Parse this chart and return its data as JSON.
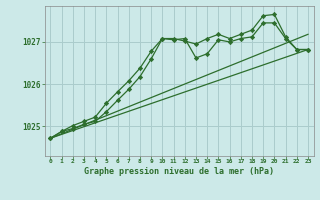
{
  "title": "Graphe pression niveau de la mer (hPa)",
  "background_color": "#cce9e8",
  "grid_color": "#aacccc",
  "line_color": "#2d6e2d",
  "xlim": [
    -0.5,
    23.5
  ],
  "ylim": [
    1024.3,
    1027.85
  ],
  "yticks": [
    1025,
    1026,
    1027
  ],
  "xticks": [
    0,
    1,
    2,
    3,
    4,
    5,
    6,
    7,
    8,
    9,
    10,
    11,
    12,
    13,
    14,
    15,
    16,
    17,
    18,
    19,
    20,
    21,
    22,
    23
  ],
  "series_straight1": {
    "x": [
      0,
      23
    ],
    "y": [
      1024.72,
      1026.82
    ]
  },
  "series_straight2": {
    "x": [
      0,
      23
    ],
    "y": [
      1024.72,
      1027.18
    ]
  },
  "series_markers1": {
    "x": [
      0,
      1,
      2,
      3,
      4,
      5,
      6,
      7,
      8,
      9,
      10,
      11,
      12,
      13,
      14,
      15,
      16,
      17,
      18,
      19,
      20,
      21,
      22,
      23
    ],
    "y": [
      1024.72,
      1024.88,
      1024.95,
      1025.05,
      1025.12,
      1025.35,
      1025.62,
      1025.88,
      1026.18,
      1026.6,
      1027.08,
      1027.05,
      1027.08,
      1026.62,
      1026.72,
      1027.05,
      1027.0,
      1027.08,
      1027.12,
      1027.45,
      1027.45,
      1027.08,
      1026.82,
      1026.82
    ]
  },
  "series_markers2": {
    "x": [
      0,
      1,
      2,
      3,
      4,
      5,
      6,
      7,
      8,
      9,
      10,
      11,
      12,
      13,
      14,
      15,
      16,
      17,
      18,
      19,
      20,
      21,
      22,
      23
    ],
    "y": [
      1024.72,
      1024.88,
      1025.02,
      1025.12,
      1025.22,
      1025.55,
      1025.82,
      1026.08,
      1026.38,
      1026.78,
      1027.08,
      1027.08,
      1027.02,
      1026.95,
      1027.08,
      1027.18,
      1027.08,
      1027.18,
      1027.28,
      1027.62,
      1027.65,
      1027.12,
      1026.82,
      1026.82
    ]
  }
}
